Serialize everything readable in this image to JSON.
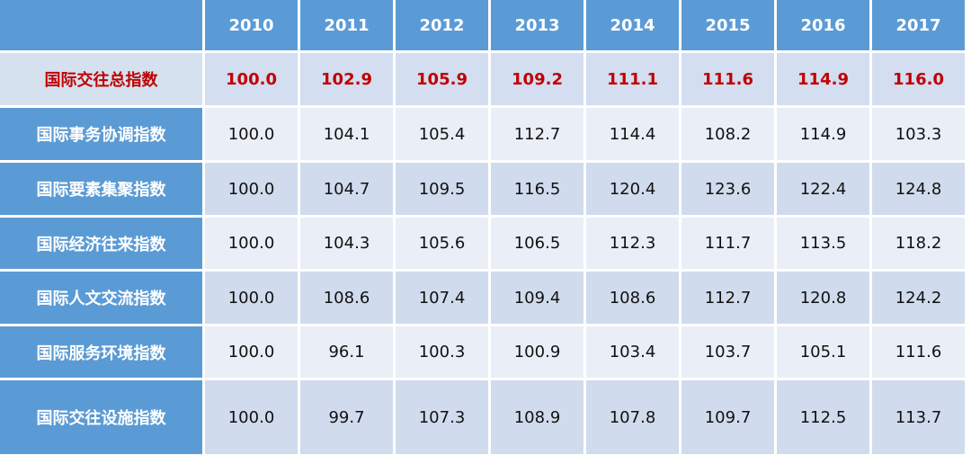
{
  "table": {
    "header": [
      "2010",
      "2011",
      "2012",
      "2013",
      "2014",
      "2015",
      "2016",
      "2017"
    ],
    "rows": [
      {
        "label": "国际交往总指数",
        "values": [
          "100.0",
          "102.9",
          "105.9",
          "109.2",
          "111.1",
          "111.6",
          "114.9",
          "116.0"
        ]
      },
      {
        "label": "国际事务协调指数",
        "values": [
          "100.0",
          "104.1",
          "105.4",
          "112.7",
          "114.4",
          "108.2",
          "114.9",
          "103.3"
        ]
      },
      {
        "label": "国际要素集聚指数",
        "values": [
          "100.0",
          "104.7",
          "109.5",
          "116.5",
          "120.4",
          "123.6",
          "122.4",
          "124.8"
        ]
      },
      {
        "label": "国际经济往来指数",
        "values": [
          "100.0",
          "104.3",
          "105.6",
          "106.5",
          "112.3",
          "111.7",
          "113.5",
          "118.2"
        ]
      },
      {
        "label": "国际人文交流指数",
        "values": [
          "100.0",
          "108.6",
          "107.4",
          "109.4",
          "108.6",
          "112.7",
          "120.8",
          "124.2"
        ]
      },
      {
        "label": "国际服务环境指数",
        "values": [
          "100.0",
          "96.1",
          "100.3",
          "100.9",
          "103.4",
          "103.7",
          "105.1",
          "111.6"
        ]
      },
      {
        "label": "国际交往设施指数",
        "values": [
          "100.0",
          "99.7",
          "107.3",
          "108.9",
          "107.8",
          "109.7",
          "112.5",
          "113.7"
        ]
      }
    ]
  }
}
